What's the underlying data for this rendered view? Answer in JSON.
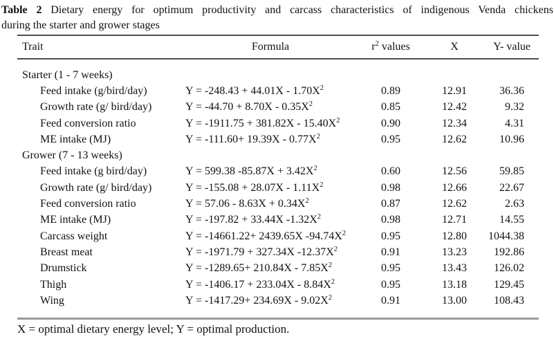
{
  "title": {
    "label": "Table 2",
    "line1_rest": " Dietary energy for optimum productivity and carcass characteristics of indigenous Venda chickens",
    "line2": "during the starter and grower stages"
  },
  "table": {
    "columns": {
      "trait": "Trait",
      "formula": "Formula",
      "r2_base": "r",
      "r2_sup": "2",
      "r2_rest": " values",
      "x": "X",
      "y": "Y- value"
    },
    "rows": [
      {
        "type": "group",
        "trait": "Starter (1 - 7 weeks)",
        "formula": "",
        "sup": "",
        "r2": "",
        "x": "",
        "y": ""
      },
      {
        "type": "item",
        "trait": "Feed intake (g/bird/day)",
        "formula": "Y = -248.43 + 44.01X - 1.70X",
        "sup": "2",
        "r2": "0.89",
        "x": "12.91",
        "y": "36.36"
      },
      {
        "type": "item",
        "trait": "Growth rate (g/ bird/day)",
        "formula": "Y = -44.70 + 8.70X - 0.35X",
        "sup": "2",
        "r2": "0.85",
        "x": "12.42",
        "y": "9.32"
      },
      {
        "type": "item",
        "trait": "Feed conversion ratio",
        "formula": "Y = -1911.75 + 381.82X - 15.40X",
        "sup": "2",
        "r2": "0.90",
        "x": "12.34",
        "y": "4.31"
      },
      {
        "type": "item",
        "trait": "ME intake (MJ)",
        "formula": "Y = -111.60+ 19.39X - 0.77X",
        "sup": "2",
        "r2": "0.95",
        "x": "12.62",
        "y": "10.96"
      },
      {
        "type": "group",
        "trait": "Grower (7 - 13 weeks)",
        "formula": "",
        "sup": "",
        "r2": "",
        "x": "",
        "y": ""
      },
      {
        "type": "item",
        "trait": "Feed intake (g bird/day)",
        "formula": "Y = 599.38 -85.87X + 3.42X",
        "sup": "2",
        "r2": "0.60",
        "x": "12.56",
        "y": "59.85"
      },
      {
        "type": "item",
        "trait": "Growth rate (g/ bird/day)",
        "formula": "Y = -155.08 + 28.07X - 1.11X",
        "sup": "2",
        "r2": "0.98",
        "x": "12.66",
        "y": "22.67"
      },
      {
        "type": "item",
        "trait": "Feed conversion ratio",
        "formula": "Y = 57.06 - 8.63X + 0.34X",
        "sup": "2",
        "r2": "0.87",
        "x": "12.62",
        "y": "2.63"
      },
      {
        "type": "item",
        "trait": "ME intake (MJ)",
        "formula": "Y = -197.82 + 33.44X -1.32X",
        "sup": "2",
        "r2": "0.98",
        "x": "12.71",
        "y": "14.55"
      },
      {
        "type": "item",
        "trait": "Carcass weight",
        "formula": "Y = -14661.22+ 2439.65X -94.74X",
        "sup": "2",
        "r2": "0.95",
        "x": "12.80",
        "y": "1044.38"
      },
      {
        "type": "item",
        "trait": "Breast meat",
        "formula": "Y = -1971.79 + 327.34X -12.37X",
        "sup": "2",
        "r2": "0.91",
        "x": "13.23",
        "y": "192.86"
      },
      {
        "type": "item",
        "trait": "Drumstick",
        "formula": "Y = -1289.65+ 210.84X - 7.85X",
        "sup": "2",
        "r2": "0.95",
        "x": "13.43",
        "y": "126.02"
      },
      {
        "type": "item",
        "trait": "Thigh",
        "formula": "Y = -1406.17 + 233.04X - 8.84X",
        "sup": "2",
        "r2": "0.95",
        "x": "13.18",
        "y": "129.45"
      },
      {
        "type": "item",
        "trait": "Wing",
        "formula": "Y = -1417.29+ 234.69X - 9.02X",
        "sup": "2",
        "r2": "0.91",
        "x": "13.00",
        "y": "108.43"
      }
    ]
  },
  "footnote": "X = optimal dietary energy level; Y = optimal production."
}
